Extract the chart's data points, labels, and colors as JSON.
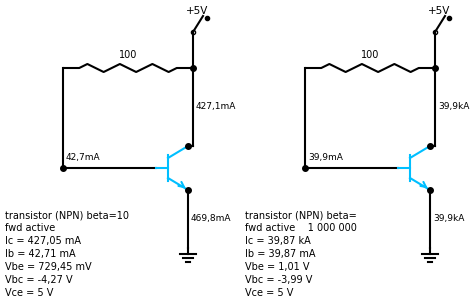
{
  "bg_color": "#ffffff",
  "line_color": "#000000",
  "transistor_color": "#00bfff",
  "circuit1": {
    "vcc_label": "+5V",
    "resistor_label": "100",
    "current_top": "427,1mA",
    "current_base": "42,7mA",
    "current_bottom": "469,8mA",
    "info_lines": [
      "transistor (NPN) beta=10",
      "fwd active",
      "Ic = 427,05 mA",
      "Ib = 42,71 mA",
      "Vbe = 729,45 mV",
      "Vbc = -4,27 V",
      "Vce = 5 V"
    ]
  },
  "circuit2": {
    "vcc_label": "+5V",
    "resistor_label": "100",
    "current_top": "39,9kA",
    "current_base": "39,9mA",
    "current_bottom": "39,9kA",
    "info_lines": [
      "transistor (NPN) beta=",
      "fwd active    1 000 000",
      "Ic = 39,87 kA",
      "Ib = 39,87 mA",
      "Vbe = 1,01 V",
      "Vbc = -3,99 V",
      "Vce = 5 V"
    ]
  }
}
